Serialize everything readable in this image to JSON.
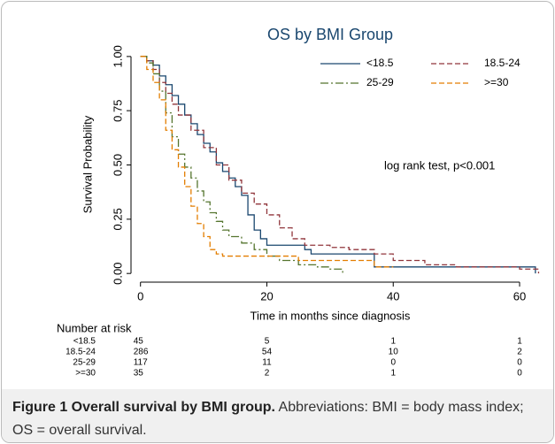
{
  "chart_data": {
    "type": "step",
    "title": "OS by BMI Group",
    "xlabel": "Time in months since diagnosis",
    "ylabel": "Survival Probability",
    "annotation": "log rank test, p<0.001",
    "xlim": [
      -1.5,
      63.5
    ],
    "ylim": [
      -0.04,
      1.04
    ],
    "xticks": [
      0,
      20,
      40,
      60
    ],
    "yticks": [
      {
        "value": 0,
        "label": "0.00"
      },
      {
        "value": 0.25,
        "label": "0.25"
      },
      {
        "value": 0.5,
        "label": "0.50"
      },
      {
        "value": 0.75,
        "label": "0.75"
      },
      {
        "value": 1,
        "label": "1.00"
      }
    ],
    "risk_title": "Number at risk",
    "series": [
      {
        "name": "<18.5",
        "color": "#1a476f",
        "style": "solid",
        "x": [
          0,
          1,
          2,
          3,
          4,
          5,
          6,
          7,
          8,
          9,
          10,
          11,
          12,
          13,
          14,
          15,
          16,
          17,
          18,
          19,
          20,
          26,
          27,
          37,
          62.5
        ],
        "values": [
          1,
          0.98,
          0.96,
          0.91,
          0.87,
          0.82,
          0.78,
          0.73,
          0.69,
          0.64,
          0.6,
          0.56,
          0.51,
          0.47,
          0.44,
          0.4,
          0.36,
          0.27,
          0.2,
          0.16,
          0.13,
          0.11,
          0.09,
          0.03,
          0
        ],
        "at_risk": [
          45,
          5,
          1,
          1
        ]
      },
      {
        "name": "18.5-24",
        "color": "#90353b",
        "style": "dash",
        "x": [
          0,
          1,
          2,
          3,
          4,
          5,
          6,
          8,
          10,
          12,
          14,
          16,
          18,
          20,
          22,
          24,
          26,
          30,
          33,
          37,
          40,
          45,
          50,
          60,
          63
        ],
        "values": [
          1,
          0.98,
          0.94,
          0.88,
          0.83,
          0.78,
          0.73,
          0.66,
          0.58,
          0.5,
          0.43,
          0.37,
          0.32,
          0.27,
          0.21,
          0.16,
          0.13,
          0.12,
          0.11,
          0.09,
          0.06,
          0.04,
          0.03,
          0.02,
          0
        ],
        "at_risk": [
          286,
          54,
          10,
          2
        ]
      },
      {
        "name": "25-29",
        "color": "#55752f",
        "style": "dashdot",
        "x": [
          0,
          1,
          2,
          3,
          4,
          5,
          6,
          7,
          8,
          9,
          10,
          11,
          12,
          13,
          14,
          16,
          18,
          20,
          22,
          25,
          28,
          30,
          32
        ],
        "values": [
          1,
          0.97,
          0.92,
          0.84,
          0.74,
          0.63,
          0.55,
          0.49,
          0.44,
          0.38,
          0.33,
          0.28,
          0.24,
          0.2,
          0.17,
          0.14,
          0.11,
          0.08,
          0.06,
          0.04,
          0.03,
          0.02,
          0
        ],
        "at_risk": [
          117,
          11,
          0,
          0
        ]
      },
      {
        "name": ">=30",
        "color": "#e37e00",
        "style": "dash",
        "x": [
          0,
          1,
          2,
          3,
          4,
          5,
          6,
          7,
          8,
          9,
          10,
          11,
          12,
          13,
          25,
          37,
          40
        ],
        "values": [
          1,
          0.94,
          0.88,
          0.8,
          0.66,
          0.57,
          0.49,
          0.4,
          0.31,
          0.23,
          0.17,
          0.11,
          0.09,
          0.08,
          0.06,
          0.03,
          0.03
        ],
        "at_risk": [
          35,
          2,
          1,
          0
        ]
      }
    ]
  },
  "caption": {
    "bold": "Figure 1 Overall survival by BMI group.",
    "text": "Abbreviations: BMI = body mass index; OS = overall survival."
  }
}
